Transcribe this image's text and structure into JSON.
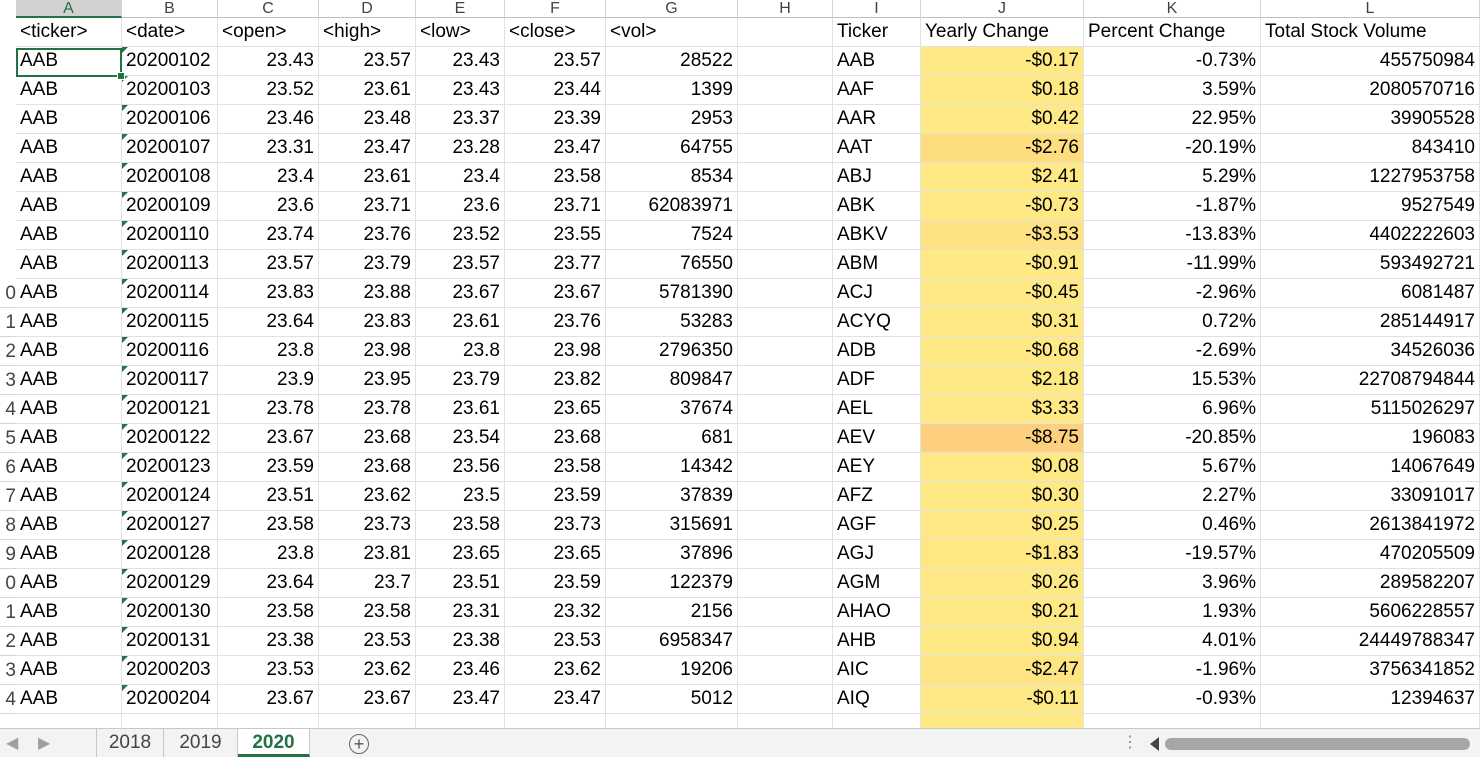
{
  "columns": [
    "A",
    "B",
    "C",
    "D",
    "E",
    "F",
    "G",
    "H",
    "I",
    "J",
    "K",
    "L"
  ],
  "selected_column": "A",
  "row_numbers": [
    "",
    "0",
    "1",
    "2",
    "3",
    "4",
    "5",
    "6",
    "7",
    "8",
    "9",
    "0",
    "1",
    "2",
    "3",
    "4"
  ],
  "headers": [
    "<ticker>",
    "<date>",
    "<open>",
    "<high>",
    "<low>",
    "<close>",
    "<vol>",
    "",
    "Ticker",
    "Yearly Change",
    "Percent Change",
    "Total Stock Volume"
  ],
  "rows": [
    {
      "a": "AAB",
      "b": "20200102",
      "c": "23.43",
      "d": "23.57",
      "e": "23.43",
      "f": "23.57",
      "g": "28522",
      "i": "AAB",
      "j": "-$0.17",
      "k": "-0.73%",
      "l": "455750984"
    },
    {
      "a": "AAB",
      "b": "20200103",
      "c": "23.52",
      "d": "23.61",
      "e": "23.43",
      "f": "23.44",
      "g": "1399",
      "i": "AAF",
      "j": "$0.18",
      "k": "3.59%",
      "l": "2080570716"
    },
    {
      "a": "AAB",
      "b": "20200106",
      "c": "23.46",
      "d": "23.48",
      "e": "23.37",
      "f": "23.39",
      "g": "2953",
      "i": "AAR",
      "j": "$0.42",
      "k": "22.95%",
      "l": "39905528"
    },
    {
      "a": "AAB",
      "b": "20200107",
      "c": "23.31",
      "d": "23.47",
      "e": "23.28",
      "f": "23.47",
      "g": "64755",
      "i": "AAT",
      "j": "-$2.76",
      "k": "-20.19%",
      "l": "843410"
    },
    {
      "a": "AAB",
      "b": "20200108",
      "c": "23.4",
      "d": "23.61",
      "e": "23.4",
      "f": "23.58",
      "g": "8534",
      "i": "ABJ",
      "j": "$2.41",
      "k": "5.29%",
      "l": "1227953758"
    },
    {
      "a": "AAB",
      "b": "20200109",
      "c": "23.6",
      "d": "23.71",
      "e": "23.6",
      "f": "23.71",
      "g": "62083971",
      "i": "ABK",
      "j": "-$0.73",
      "k": "-1.87%",
      "l": "9527549"
    },
    {
      "a": "AAB",
      "b": "20200110",
      "c": "23.74",
      "d": "23.76",
      "e": "23.52",
      "f": "23.55",
      "g": "7524",
      "i": "ABKV",
      "j": "-$3.53",
      "k": "-13.83%",
      "l": "4402222603"
    },
    {
      "a": "AAB",
      "b": "20200113",
      "c": "23.57",
      "d": "23.79",
      "e": "23.57",
      "f": "23.77",
      "g": "76550",
      "i": "ABM",
      "j": "-$0.91",
      "k": "-11.99%",
      "l": "593492721"
    },
    {
      "a": "AAB",
      "b": "20200114",
      "c": "23.83",
      "d": "23.88",
      "e": "23.67",
      "f": "23.67",
      "g": "5781390",
      "i": "ACJ",
      "j": "-$0.45",
      "k": "-2.96%",
      "l": "6081487"
    },
    {
      "a": "AAB",
      "b": "20200115",
      "c": "23.64",
      "d": "23.83",
      "e": "23.61",
      "f": "23.76",
      "g": "53283",
      "i": "ACYQ",
      "j": "$0.31",
      "k": "0.72%",
      "l": "285144917"
    },
    {
      "a": "AAB",
      "b": "20200116",
      "c": "23.8",
      "d": "23.98",
      "e": "23.8",
      "f": "23.98",
      "g": "2796350",
      "i": "ADB",
      "j": "-$0.68",
      "k": "-2.69%",
      "l": "34526036"
    },
    {
      "a": "AAB",
      "b": "20200117",
      "c": "23.9",
      "d": "23.95",
      "e": "23.79",
      "f": "23.82",
      "g": "809847",
      "i": "ADF",
      "j": "$2.18",
      "k": "15.53%",
      "l": "22708794844"
    },
    {
      "a": "AAB",
      "b": "20200121",
      "c": "23.78",
      "d": "23.78",
      "e": "23.61",
      "f": "23.65",
      "g": "37674",
      "i": "AEL",
      "j": "$3.33",
      "k": "6.96%",
      "l": "5115026297"
    },
    {
      "a": "AAB",
      "b": "20200122",
      "c": "23.67",
      "d": "23.68",
      "e": "23.54",
      "f": "23.68",
      "g": "681",
      "i": "AEV",
      "j": "-$8.75",
      "k": "-20.85%",
      "l": "196083"
    },
    {
      "a": "AAB",
      "b": "20200123",
      "c": "23.59",
      "d": "23.68",
      "e": "23.56",
      "f": "23.58",
      "g": "14342",
      "i": "AEY",
      "j": "$0.08",
      "k": "5.67%",
      "l": "14067649"
    },
    {
      "a": "AAB",
      "b": "20200124",
      "c": "23.51",
      "d": "23.62",
      "e": "23.5",
      "f": "23.59",
      "g": "37839",
      "i": "AFZ",
      "j": "$0.30",
      "k": "2.27%",
      "l": "33091017"
    },
    {
      "a": "AAB",
      "b": "20200127",
      "c": "23.58",
      "d": "23.73",
      "e": "23.58",
      "f": "23.73",
      "g": "315691",
      "i": "AGF",
      "j": "$0.25",
      "k": "0.46%",
      "l": "2613841972"
    },
    {
      "a": "AAB",
      "b": "20200128",
      "c": "23.8",
      "d": "23.81",
      "e": "23.65",
      "f": "23.65",
      "g": "37896",
      "i": "AGJ",
      "j": "-$1.83",
      "k": "-19.57%",
      "l": "470205509"
    },
    {
      "a": "AAB",
      "b": "20200129",
      "c": "23.64",
      "d": "23.7",
      "e": "23.51",
      "f": "23.59",
      "g": "122379",
      "i": "AGM",
      "j": "$0.26",
      "k": "3.96%",
      "l": "289582207"
    },
    {
      "a": "AAB",
      "b": "20200130",
      "c": "23.58",
      "d": "23.58",
      "e": "23.31",
      "f": "23.32",
      "g": "2156",
      "i": "AHAO",
      "j": "$0.21",
      "k": "1.93%",
      "l": "5606228557"
    },
    {
      "a": "AAB",
      "b": "20200131",
      "c": "23.38",
      "d": "23.53",
      "e": "23.38",
      "f": "23.53",
      "g": "6958347",
      "i": "AHB",
      "j": "$0.94",
      "k": "4.01%",
      "l": "24449788347"
    },
    {
      "a": "AAB",
      "b": "20200203",
      "c": "23.53",
      "d": "23.62",
      "e": "23.46",
      "f": "23.62",
      "g": "19206",
      "i": "AIC",
      "j": "-$2.47",
      "k": "-1.96%",
      "l": "3756341852"
    },
    {
      "a": "AAB",
      "b": "20200204",
      "c": "23.67",
      "d": "23.67",
      "e": "23.47",
      "f": "23.47",
      "g": "5012",
      "i": "AIQ",
      "j": "-$0.11",
      "k": "-0.93%",
      "l": "12394637"
    }
  ],
  "j_fill_colors": [
    "#ffe984",
    "#ffe984",
    "#ffe984",
    "#fedd7f",
    "#ffe984",
    "#ffe984",
    "#fee181",
    "#ffe984",
    "#ffe984",
    "#ffe984",
    "#ffe984",
    "#ffe984",
    "#ffe984",
    "#fcd07e",
    "#ffe984",
    "#ffe984",
    "#ffe984",
    "#ffe882",
    "#ffe984",
    "#ffe984",
    "#ffe984",
    "#fee482",
    "#ffe984"
  ],
  "sheet_tabs": [
    "2018",
    "2019",
    "2020"
  ],
  "active_tab": "2020",
  "colors": {
    "accent": "#217346",
    "conditional_fill": "#ffe984"
  }
}
